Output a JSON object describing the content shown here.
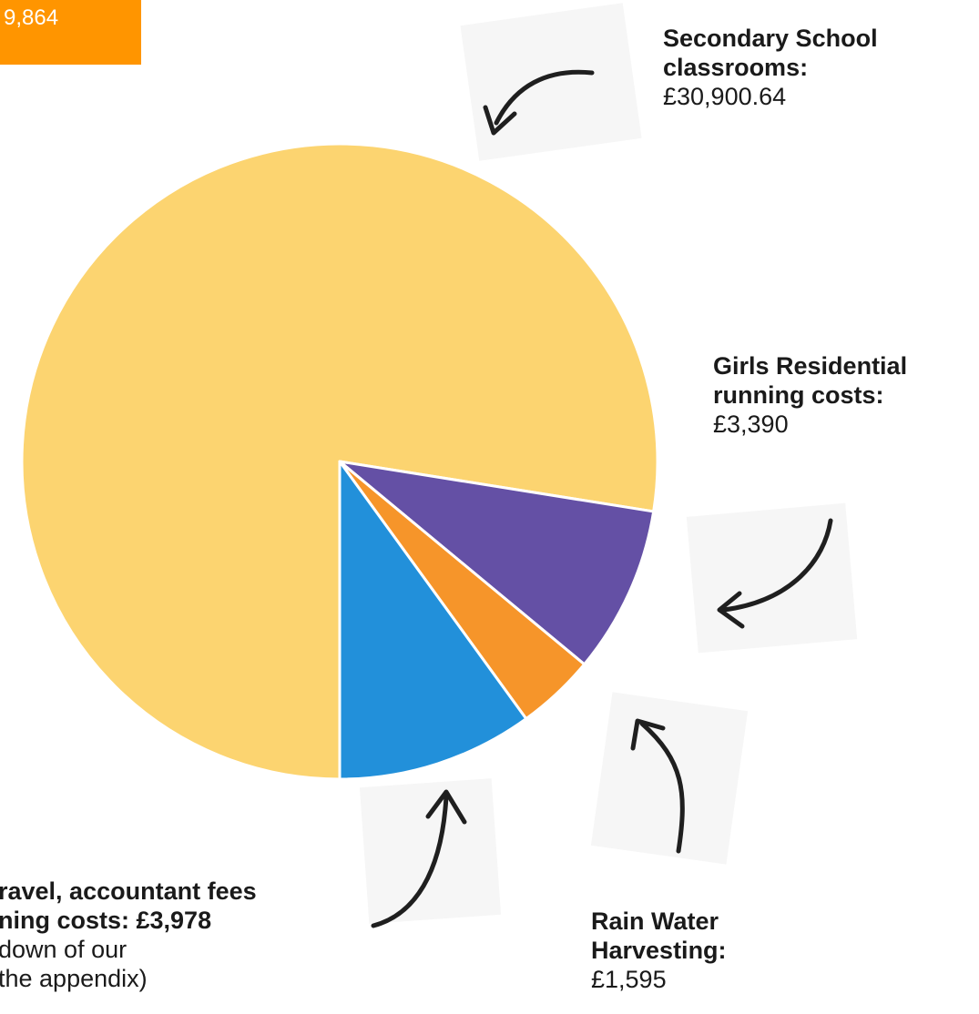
{
  "total": {
    "text": "9,864"
  },
  "labels": {
    "secondary": {
      "line1": "Secondary School",
      "line2": "classrooms:",
      "value": "£30,900.64"
    },
    "girls": {
      "line1": "Girls Residential",
      "line2": "running costs:",
      "value": "£3,390"
    },
    "rain": {
      "line1": "Rain Water",
      "line2": "Harvesting:",
      "value": "£1,595"
    },
    "travel": {
      "line1": "ravel, accountant fees",
      "line2": "ning costs: £3,978",
      "line3": "down of our",
      "line4": "the appendix)"
    }
  },
  "chart_data": {
    "type": "pie",
    "start": "bottom (6 o'clock), clockwise",
    "slices": [
      {
        "label": "Secondary School classrooms",
        "value": 30900.64,
        "color": "#FCD470"
      },
      {
        "label": "Girls Residential running costs",
        "value": 3390,
        "color": "#6450A5"
      },
      {
        "label": "Rain Water Harvesting",
        "value": 1595,
        "color": "#F6952A"
      },
      {
        "label": "Travel, accountant fees and running costs",
        "value": 3978,
        "color": "#2290DA"
      }
    ]
  }
}
